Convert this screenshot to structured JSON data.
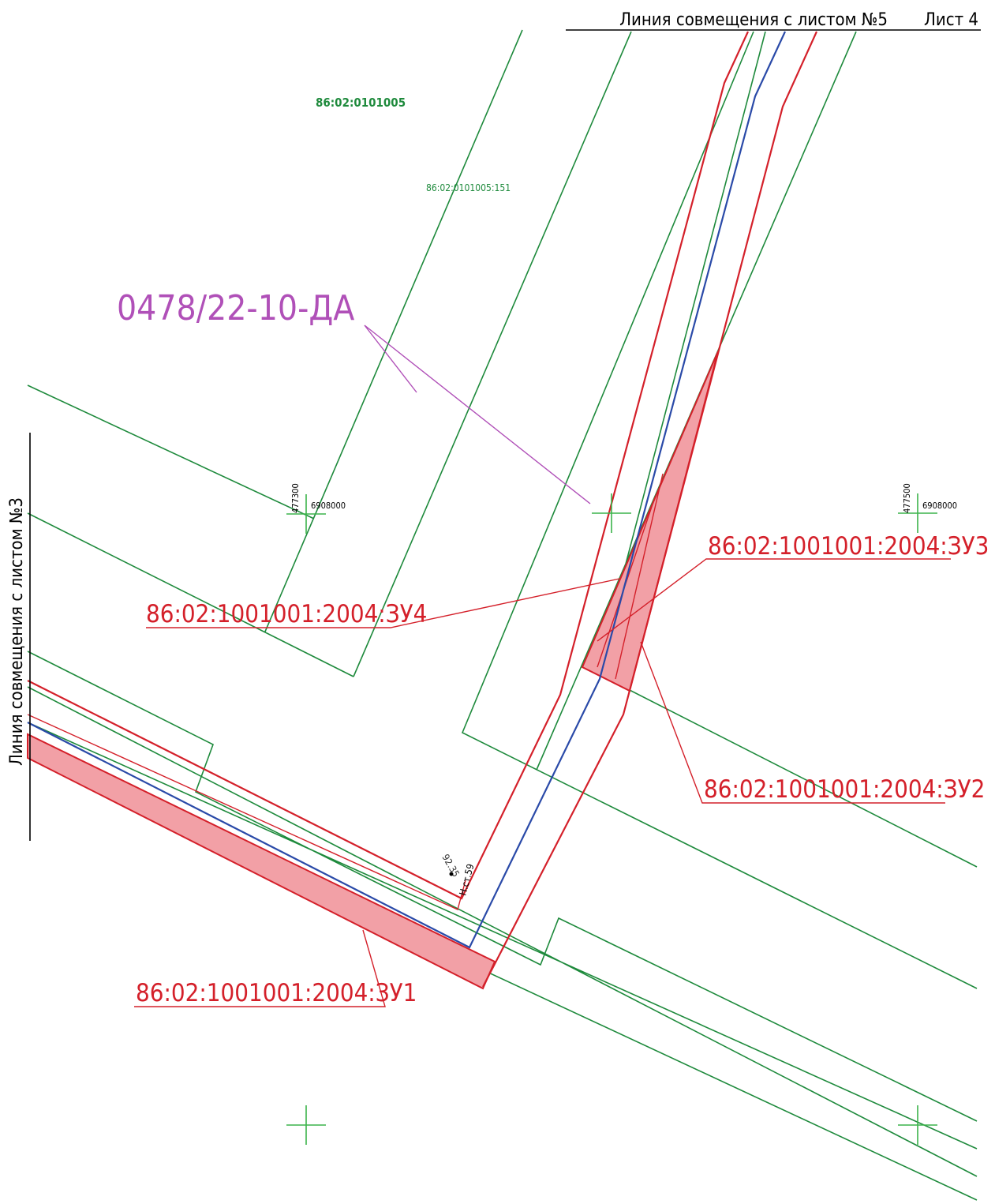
{
  "header": {
    "match_line": "Линия совмещения с листом №5",
    "sheet": "Лист 4"
  },
  "left_match_line": "Линия совмещения с листом №3",
  "block_label": "86:02:0101005",
  "parcel_label": "86:02:0101005:151",
  "project_code": "0478/22-10-ДА",
  "coordinates": [
    {
      "x": "477300",
      "y": "6908000"
    },
    {
      "x": "477500",
      "y": "6908000"
    }
  ],
  "plots": [
    "86:02:1001001:2004:ЗУ4",
    "86:02:1001001:2004:ЗУ3",
    "86:02:1001001:2004:ЗУ2",
    "86:02:1001001:2004:ЗУ1"
  ],
  "elevation": {
    "value": "92.35",
    "station": "Н.ст.59"
  }
}
